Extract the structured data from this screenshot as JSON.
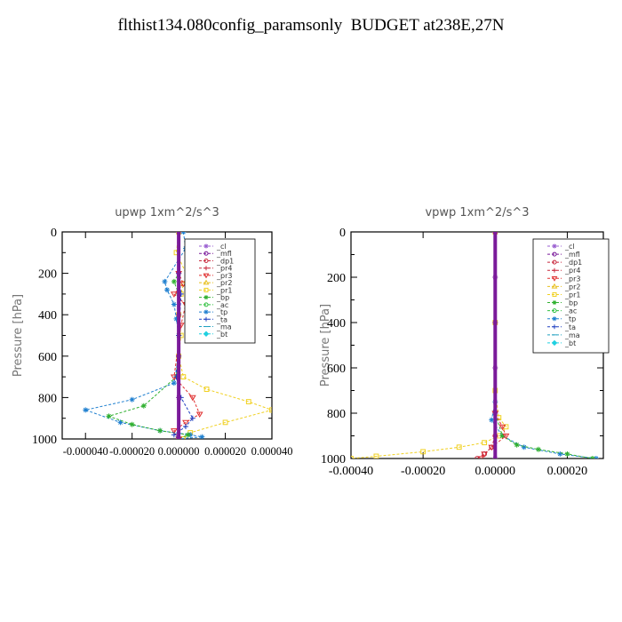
{
  "page": {
    "title": "flthist134.080config_paramsonly  BUDGET at238E,27N"
  },
  "legend_entries": [
    {
      "name": "_cl",
      "color": "#9a5fd0",
      "marker": "star"
    },
    {
      "name": "_mfl",
      "color": "#7a1a9a",
      "marker": "circle"
    },
    {
      "name": "_dp1",
      "color": "#c8283c",
      "marker": "circle"
    },
    {
      "name": "_pr4",
      "color": "#c8283c",
      "marker": "plus"
    },
    {
      "name": "_pr3",
      "color": "#e03030",
      "marker": "tri-down"
    },
    {
      "name": "_pr2",
      "color": "#e8c020",
      "marker": "tri-up"
    },
    {
      "name": "_pr1",
      "color": "#f0d020",
      "marker": "square"
    },
    {
      "name": "_bp",
      "color": "#30b030",
      "marker": "star"
    },
    {
      "name": "_ac",
      "color": "#30c040",
      "marker": "circle"
    },
    {
      "name": "_tp",
      "color": "#2080d0",
      "marker": "star"
    },
    {
      "name": "_ta",
      "color": "#2040c0",
      "marker": "plus"
    },
    {
      "name": "_ma",
      "color": "#20a0c0",
      "marker": "dash"
    },
    {
      "name": "_bt",
      "color": "#20d0e0",
      "marker": "diamond"
    }
  ],
  "chart_data": [
    {
      "type": "line",
      "title": "upwp  1xm^2/s^3",
      "ylabel": "Pressure [hPa]",
      "xlabel": "",
      "xlim": [
        -5e-05,
        4e-05
      ],
      "ylim": [
        1000,
        0
      ],
      "xticks": [
        -4e-05,
        -2e-05,
        0.0,
        2e-05,
        4e-05
      ],
      "xtick_labels": [
        "-0.000040",
        "-0.000020",
        "0.000000",
        "0.000020",
        "0.000040"
      ],
      "yticks": [
        0,
        200,
        400,
        600,
        800,
        1000
      ],
      "ytick_labels": [
        "0",
        "200",
        "400",
        "600",
        "800",
        "1000"
      ],
      "legend_position": "top-right",
      "series": [
        {
          "name": "_pr1",
          "x": [
            0,
            -1e-06,
            4e-06,
            2e-06,
            1e-06,
            0,
            1e-06,
            0,
            2e-06,
            1.2e-05,
            3e-05,
            4e-05,
            2e-05,
            5e-06,
            2e-06
          ],
          "y": [
            0,
            100,
            220,
            250,
            300,
            400,
            500,
            600,
            700,
            760,
            820,
            860,
            920,
            970,
            1000
          ]
        },
        {
          "name": "_tp",
          "x": [
            2e-06,
            3e-06,
            -6e-06,
            -5e-06,
            -2e-06,
            -1e-06,
            0,
            0,
            -2e-06,
            -2e-05,
            -4e-05,
            -2.5e-05,
            -8e-06,
            5e-06,
            1e-05,
            0
          ],
          "y": [
            0,
            80,
            240,
            280,
            350,
            420,
            500,
            600,
            730,
            810,
            860,
            920,
            960,
            980,
            990,
            1000
          ]
        },
        {
          "name": "_bp",
          "x": [
            0,
            0,
            -2e-06,
            0,
            0,
            -1e-06,
            -1.5e-05,
            -3e-05,
            -2e-05,
            -8e-06,
            4e-06,
            0
          ],
          "y": [
            0,
            200,
            240,
            300,
            500,
            700,
            840,
            890,
            930,
            960,
            980,
            1000
          ]
        },
        {
          "name": "_pr3",
          "x": [
            0,
            0,
            2e-06,
            -2e-06,
            3e-06,
            1e-06,
            -2e-06,
            6e-06,
            9e-06,
            3e-06,
            -2e-06,
            0
          ],
          "y": [
            0,
            200,
            250,
            300,
            350,
            450,
            700,
            800,
            880,
            920,
            960,
            1000
          ]
        },
        {
          "name": "_ta",
          "x": [
            0,
            0,
            1e-06,
            0,
            -1e-06,
            1e-06,
            6e-06,
            3e-06,
            -2e-06,
            0
          ],
          "y": [
            0,
            200,
            300,
            500,
            700,
            800,
            900,
            940,
            980,
            1000
          ]
        },
        {
          "name": "_cl",
          "x": [
            0,
            0,
            0,
            0,
            0,
            0
          ],
          "y": [
            0,
            200,
            400,
            600,
            800,
            1000
          ]
        }
      ]
    },
    {
      "type": "line",
      "title": "vpwp  1xm^2/s^3",
      "ylabel": "Pressure [hPa]",
      "xlabel": "",
      "xlim": [
        -0.0004,
        0.0003
      ],
      "ylim": [
        1000,
        0
      ],
      "xticks": [
        -0.0004,
        -0.0002,
        0.0,
        0.0002
      ],
      "xtick_labels": [
        "-0.00040",
        "-0.00020",
        "0.00000",
        "0.00020"
      ],
      "yticks": [
        0,
        200,
        400,
        600,
        800,
        1000
      ],
      "ytick_labels": [
        "0",
        "200",
        "400",
        "600",
        "800",
        "1000"
      ],
      "legend_position": "top-right",
      "series": [
        {
          "name": "_pr1",
          "x": [
            0,
            0,
            0,
            1e-05,
            3e-05,
            1e-05,
            -3e-05,
            -0.0001,
            -0.0002,
            -0.00033,
            -0.0004
          ],
          "y": [
            0,
            400,
            700,
            820,
            860,
            900,
            930,
            950,
            970,
            990,
            1000
          ]
        },
        {
          "name": "_tp",
          "x": [
            0,
            0,
            -1e-05,
            2e-05,
            8e-05,
            0.00018,
            0.00028
          ],
          "y": [
            0,
            750,
            830,
            900,
            950,
            980,
            1000
          ]
        },
        {
          "name": "_bp",
          "x": [
            0,
            0,
            2e-05,
            6e-05,
            0.00012,
            0.0002,
            0.00027
          ],
          "y": [
            0,
            800,
            900,
            940,
            960,
            980,
            1000
          ]
        },
        {
          "name": "_pr3",
          "x": [
            0,
            0,
            2e-05,
            3e-05,
            -1e-05,
            -3e-05,
            -4e-05
          ],
          "y": [
            0,
            800,
            860,
            900,
            950,
            980,
            1000
          ]
        },
        {
          "name": "_dp1",
          "x": [
            0,
            0,
            -1e-05,
            -3e-05,
            -5e-05
          ],
          "y": [
            0,
            900,
            950,
            980,
            1000
          ]
        },
        {
          "name": "_cl",
          "x": [
            0,
            0,
            0,
            0,
            0,
            0
          ],
          "y": [
            0,
            200,
            400,
            600,
            800,
            1000
          ]
        }
      ]
    }
  ]
}
